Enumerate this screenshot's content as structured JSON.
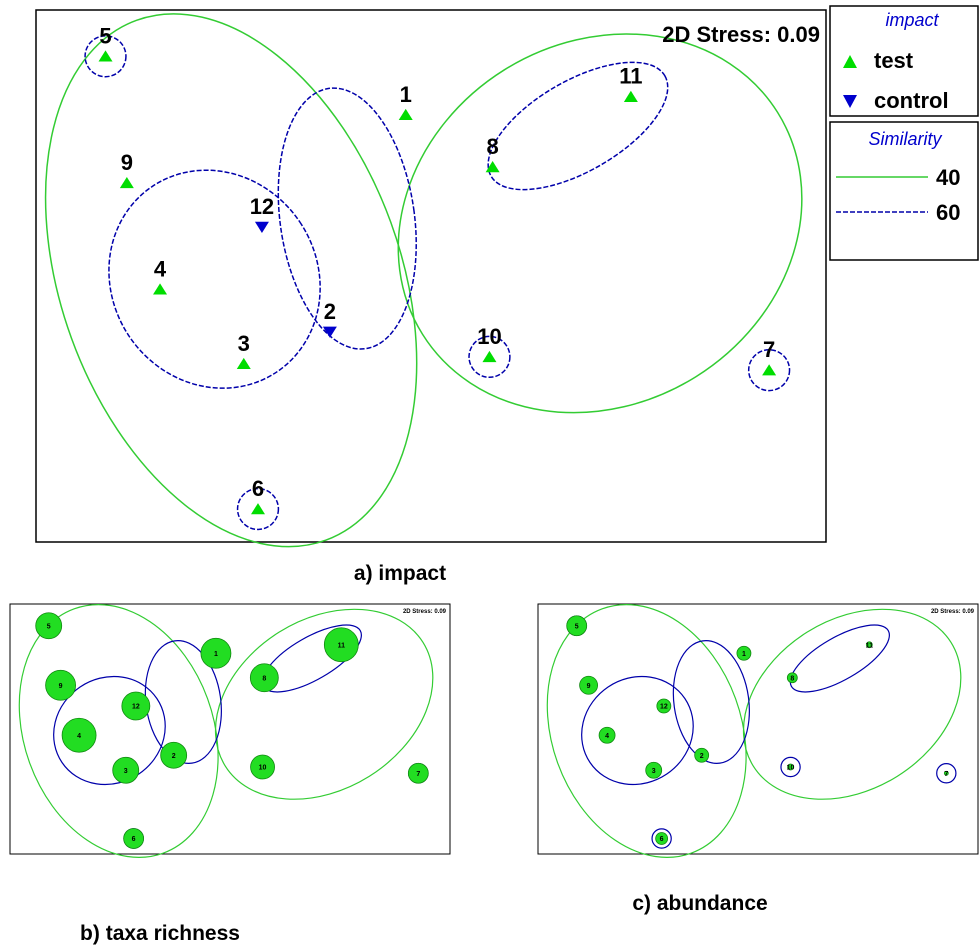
{
  "chart_data": [
    {
      "type": "scatter",
      "panel": "a",
      "caption": "a) impact",
      "annotation": "2D Stress: 0.09",
      "marker_style": "triangles",
      "x": "ordination axis 1 (unlabeled)",
      "points": [
        {
          "label": "1",
          "group": "test",
          "x": 0.468,
          "y": 0.197
        },
        {
          "label": "2",
          "group": "control",
          "x": 0.372,
          "y": 0.605
        },
        {
          "label": "3",
          "group": "test",
          "x": 0.263,
          "y": 0.665
        },
        {
          "label": "4",
          "group": "test",
          "x": 0.157,
          "y": 0.525
        },
        {
          "label": "5",
          "group": "test",
          "x": 0.088,
          "y": 0.087
        },
        {
          "label": "6",
          "group": "test",
          "x": 0.281,
          "y": 0.938
        },
        {
          "label": "7",
          "group": "test",
          "x": 0.928,
          "y": 0.677
        },
        {
          "label": "8",
          "group": "test",
          "x": 0.578,
          "y": 0.295
        },
        {
          "label": "9",
          "group": "test",
          "x": 0.115,
          "y": 0.325
        },
        {
          "label": "10",
          "group": "test",
          "x": 0.574,
          "y": 0.652
        },
        {
          "label": "11",
          "group": "test",
          "x": 0.753,
          "y": 0.163
        },
        {
          "label": "12",
          "group": "control",
          "x": 0.286,
          "y": 0.408
        }
      ],
      "legend": {
        "title": "impact",
        "entries": [
          {
            "name": "test",
            "color": "#00dd00",
            "marker": "triangle-up"
          },
          {
            "name": "control",
            "color": "#0000cc",
            "marker": "triangle-down"
          }
        ]
      },
      "similarity_legend": {
        "title": "Similarity",
        "entries": [
          {
            "name": "40",
            "color": "#33cc33",
            "line": "solid"
          },
          {
            "name": "60",
            "color": "#0000aa",
            "line": "dashed"
          }
        ]
      },
      "clusters": {
        "40": [
          [
            "1",
            "2",
            "3",
            "4",
            "5",
            "6",
            "9",
            "12"
          ],
          [
            "7",
            "8",
            "10",
            "11"
          ]
        ],
        "60": [
          [
            "1",
            "2",
            "12"
          ],
          [
            "3",
            "4",
            "9",
            "12"
          ],
          [
            "8",
            "11"
          ],
          [
            "5"
          ],
          [
            "6"
          ],
          [
            "7"
          ],
          [
            "10"
          ]
        ]
      }
    },
    {
      "type": "scatter",
      "panel": "b",
      "caption": "b) taxa richness",
      "annotation": "2D Stress: 0.09",
      "marker_style": "bubbles",
      "bubble_size": {
        "1": 15,
        "2": 13,
        "3": 13,
        "4": 17,
        "5": 13,
        "6": 10,
        "7": 10,
        "8": 14,
        "9": 15,
        "10": 12,
        "11": 17,
        "12": 14
      }
    },
    {
      "type": "scatter",
      "panel": "c",
      "caption": "c) abundance",
      "annotation": "2D Stress: 0.09",
      "marker_style": "bubbles",
      "bubble_size": {
        "1": 7,
        "2": 7,
        "3": 8,
        "4": 8,
        "5": 10,
        "6": 6,
        "7": 2,
        "8": 5,
        "9": 9,
        "10": 3,
        "11": 3,
        "12": 7
      }
    }
  ],
  "colors": {
    "test": "#00dd00",
    "control": "#0000cc",
    "similarity_40": "#33cc33",
    "similarity_60": "#0000aa",
    "bubble_fill": "#22dd22",
    "legend_title": "#0000cc"
  }
}
